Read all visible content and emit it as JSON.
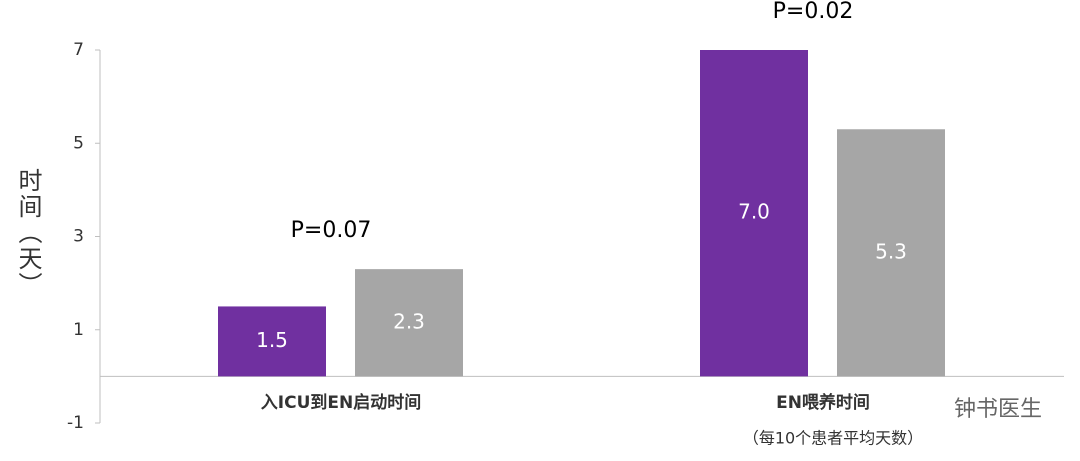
{
  "chart_data": {
    "type": "bar",
    "y_label": "时间（天）",
    "categories": [
      "入ICU到EN启动时间",
      "EN喂养时间"
    ],
    "series": [
      {
        "color": "#7030a0",
        "values": [
          1.5,
          7.0
        ],
        "value_labels": [
          "1.5",
          "7.0"
        ]
      },
      {
        "color": "#a6a6a6",
        "values": [
          2.3,
          5.3
        ],
        "value_labels": [
          "2.3",
          "5.3"
        ]
      }
    ],
    "annotations": [
      "P=0.07",
      "P=0.02"
    ],
    "note": "（每10个患者平均天数）",
    "watermark": "钟书医生",
    "ylim": [
      -1,
      7
    ],
    "yticks": [
      -1,
      1,
      3,
      5,
      7
    ],
    "grid": false
  }
}
